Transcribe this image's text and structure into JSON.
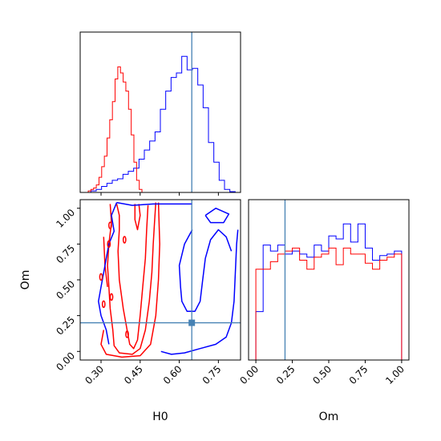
{
  "chart_data": {
    "type": "corner",
    "parameters": [
      "H0",
      "Om"
    ],
    "truth": {
      "H0": 0.648,
      "Om": 0.2
    },
    "colors": {
      "series_a": "#0000ff",
      "series_b": "#ff0000",
      "truth": "#4682b4"
    },
    "grid": false,
    "legend": "none",
    "panels": [
      {
        "id": "hist-H0",
        "type": "histogram",
        "xlim": [
          0.22,
          0.835
        ],
        "ylim": [
          0,
          1.06
        ],
        "x_ticks": [
          0.3,
          0.45,
          0.6,
          0.75
        ],
        "tick_labels_shown": false,
        "series": [
          {
            "color": "blue",
            "bin_start": 0.22,
            "bin_width": 0.0205,
            "values": [
              0,
              0,
              0.01,
              0.02,
              0.04,
              0.06,
              0.08,
              0.09,
              0.12,
              0.14,
              0.16,
              0.22,
              0.28,
              0.34,
              0.4,
              0.55,
              0.67,
              0.76,
              0.79,
              0.9,
              0.81,
              0.82,
              0.71,
              0.56,
              0.33,
              0.2,
              0.08,
              0.02,
              0.005,
              0
            ]
          },
          {
            "color": "red",
            "bin_start": 0.22,
            "bin_width": 0.0103,
            "values": [
              0,
              0,
              0,
              0.01,
              0.02,
              0.03,
              0.05,
              0.1,
              0.17,
              0.24,
              0.36,
              0.48,
              0.6,
              0.75,
              0.83,
              0.79,
              0.73,
              0.67,
              0.55,
              0.38,
              0.2,
              0.08,
              0.02,
              0,
              0
            ]
          }
        ]
      },
      {
        "id": "hist-Om",
        "type": "histogram",
        "xlim": [
          -0.05,
          1.05
        ],
        "ylim": [
          0,
          1.06
        ],
        "x_ticks": [
          0.0,
          0.25,
          0.5,
          0.75,
          1.0
        ],
        "x_tick_labels": [
          "0.00",
          "0.25",
          "0.50",
          "0.75",
          "1.00"
        ],
        "xlabel": "Om",
        "series": [
          {
            "color": "blue",
            "bin_start": 0.0,
            "bin_width": 0.05,
            "values": [
              0.32,
              0.76,
              0.72,
              0.76,
              0.7,
              0.72,
              0.7,
              0.68,
              0.76,
              0.72,
              0.82,
              0.8,
              0.9,
              0.78,
              0.9,
              0.74,
              0.66,
              0.69,
              0.7,
              0.72
            ]
          },
          {
            "color": "red",
            "bin_start": 0.0,
            "bin_width": 0.05,
            "values": [
              0.6,
              0.6,
              0.65,
              0.7,
              0.72,
              0.74,
              0.66,
              0.6,
              0.68,
              0.7,
              0.74,
              0.63,
              0.74,
              0.7,
              0.7,
              0.64,
              0.6,
              0.66,
              0.68,
              0.7
            ]
          }
        ]
      },
      {
        "id": "joint-H0-Om",
        "type": "contour",
        "xlim": [
          0.22,
          0.835
        ],
        "ylim": [
          -0.06,
          1.06
        ],
        "x_ticks": [
          0.3,
          0.45,
          0.6,
          0.75
        ],
        "x_tick_labels": [
          "0.30",
          "0.45",
          "0.60",
          "0.75"
        ],
        "y_ticks": [
          0.0,
          0.25,
          0.5,
          0.75,
          1.0
        ],
        "y_tick_labels": [
          "0.00",
          "0.25",
          "0.50",
          "0.75",
          "1.00"
        ],
        "xlabel": "H0",
        "ylabel": "Om",
        "contours": [
          {
            "color": "red",
            "points": [
              [
                0.36,
                1.03
              ],
              [
                0.37,
                0.95
              ],
              [
                0.37,
                0.85
              ],
              [
                0.365,
                0.7
              ],
              [
                0.37,
                0.5
              ],
              [
                0.385,
                0.3
              ],
              [
                0.4,
                0.15
              ],
              [
                0.41,
                0.05
              ],
              [
                0.425,
                0.02
              ],
              [
                0.44,
                0.08
              ],
              [
                0.45,
                0.25
              ],
              [
                0.46,
                0.45
              ],
              [
                0.47,
                0.65
              ],
              [
                0.475,
                0.85
              ],
              [
                0.48,
                1.02
              ]
            ]
          },
          {
            "color": "red",
            "points": [
              [
                0.335,
                1.03
              ],
              [
                0.34,
                0.9
              ],
              [
                0.33,
                0.75
              ],
              [
                0.325,
                0.6
              ],
              [
                0.33,
                0.45
              ],
              [
                0.335,
                0.3
              ],
              [
                0.345,
                0.15
              ],
              [
                0.35,
                0.04
              ],
              [
                0.37,
                -0.01
              ],
              [
                0.42,
                -0.02
              ],
              [
                0.45,
                0.02
              ],
              [
                0.47,
                0.15
              ],
              [
                0.485,
                0.35
              ],
              [
                0.495,
                0.55
              ],
              [
                0.5,
                0.75
              ],
              [
                0.505,
                0.9
              ],
              [
                0.51,
                1.04
              ]
            ]
          },
          {
            "color": "red",
            "points": [
              [
                0.31,
                0.8
              ],
              [
                0.315,
                0.6
              ],
              [
                0.325,
                0.45
              ]
            ]
          },
          {
            "color": "red",
            "points": [
              [
                0.31,
                0.15
              ],
              [
                0.3,
                0.05
              ],
              [
                0.32,
                -0.02
              ],
              [
                0.38,
                -0.04
              ],
              [
                0.45,
                -0.03
              ],
              [
                0.49,
                0.05
              ],
              [
                0.51,
                0.25
              ],
              [
                0.52,
                0.5
              ],
              [
                0.525,
                0.75
              ],
              [
                0.52,
                1.04
              ]
            ]
          },
          {
            "color": "red",
            "points": [
              [
                0.43,
                1.03
              ],
              [
                0.43,
                0.92
              ],
              [
                0.44,
                0.85
              ],
              [
                0.45,
                0.95
              ],
              [
                0.445,
                1.03
              ]
            ]
          },
          {
            "color": "blue",
            "points": [
              [
                0.36,
                1.04
              ],
              [
                0.34,
                0.95
              ],
              [
                0.35,
                0.84
              ],
              [
                0.33,
                0.75
              ],
              [
                0.32,
                0.65
              ],
              [
                0.31,
                0.55
              ],
              [
                0.3,
                0.45
              ],
              [
                0.29,
                0.35
              ],
              [
                0.3,
                0.25
              ],
              [
                0.32,
                0.15
              ],
              [
                0.33,
                0.05
              ]
            ]
          },
          {
            "color": "blue",
            "points": [
              [
                0.36,
                1.04
              ],
              [
                0.42,
                1.02
              ],
              [
                0.5,
                1.03
              ],
              [
                0.6,
                1.03
              ],
              [
                0.65,
                1.03
              ]
            ]
          },
          {
            "color": "blue",
            "points": [
              [
                0.65,
                0.85
              ],
              [
                0.62,
                0.75
              ],
              [
                0.6,
                0.6
              ],
              [
                0.605,
                0.45
              ],
              [
                0.61,
                0.35
              ],
              [
                0.63,
                0.28
              ],
              [
                0.66,
                0.28
              ],
              [
                0.68,
                0.35
              ],
              [
                0.69,
                0.5
              ],
              [
                0.7,
                0.65
              ],
              [
                0.72,
                0.78
              ],
              [
                0.75,
                0.85
              ],
              [
                0.78,
                0.8
              ],
              [
                0.8,
                0.7
              ]
            ]
          },
          {
            "color": "blue",
            "points": [
              [
                0.53,
                0.0
              ],
              [
                0.57,
                -0.02
              ],
              [
                0.62,
                -0.01
              ],
              [
                0.68,
                0.02
              ],
              [
                0.74,
                0.05
              ],
              [
                0.78,
                0.1
              ],
              [
                0.8,
                0.2
              ],
              [
                0.81,
                0.35
              ],
              [
                0.815,
                0.55
              ],
              [
                0.82,
                0.75
              ],
              [
                0.825,
                0.85
              ]
            ]
          },
          {
            "color": "blue",
            "points": [
              [
                0.7,
                0.95
              ],
              [
                0.74,
                1.0
              ],
              [
                0.79,
                0.96
              ],
              [
                0.77,
                0.9
              ],
              [
                0.72,
                0.9
              ],
              [
                0.7,
                0.95
              ]
            ]
          }
        ],
        "islands": [
          {
            "color": "red",
            "x": 0.335,
            "y": 0.88
          },
          {
            "color": "red",
            "x": 0.33,
            "y": 0.75
          },
          {
            "color": "red",
            "x": 0.3,
            "y": 0.52
          },
          {
            "color": "red",
            "x": 0.31,
            "y": 0.33
          },
          {
            "color": "red",
            "x": 0.34,
            "y": 0.38
          },
          {
            "color": "red",
            "x": 0.39,
            "y": 0.78
          },
          {
            "color": "red",
            "x": 0.4,
            "y": 0.12
          }
        ]
      }
    ]
  }
}
